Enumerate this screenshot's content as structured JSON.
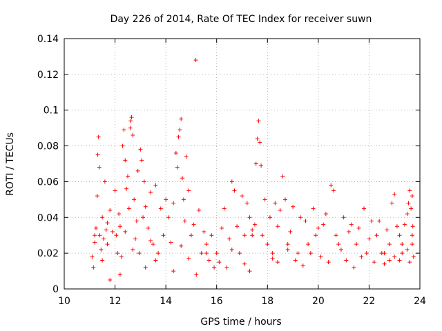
{
  "chart_data": {
    "type": "scatter",
    "title": "Day 226 of 2014, Rate Of TEC Index for receiver suwn",
    "xlabel": "GPS time / hours",
    "ylabel": "ROTI / TECUs",
    "xlim": [
      10,
      24
    ],
    "ylim": [
      0,
      0.14
    ],
    "xticks": [
      10,
      12,
      14,
      16,
      18,
      20,
      22,
      24
    ],
    "xtick_labels": [
      "10",
      "12",
      "14",
      "16",
      "18",
      "20",
      "22",
      "24"
    ],
    "yticks": [
      0,
      0.02,
      0.04,
      0.06,
      0.08,
      0.1,
      0.12,
      0.14
    ],
    "ytick_labels": [
      "0",
      "0.02",
      "0.04",
      "0.06",
      "0.08",
      "0.1",
      "0.12",
      "0.14"
    ],
    "grid": true,
    "marker": "+",
    "color": "#ff0000",
    "series": [
      {
        "name": "ROTI",
        "points": [
          [
            11.1,
            0.018
          ],
          [
            11.15,
            0.012
          ],
          [
            11.2,
            0.026
          ],
          [
            11.25,
            0.034
          ],
          [
            11.3,
            0.052
          ],
          [
            11.32,
            0.075
          ],
          [
            11.35,
            0.085
          ],
          [
            11.38,
            0.068
          ],
          [
            11.4,
            0.03
          ],
          [
            11.45,
            0.022
          ],
          [
            11.5,
            0.04
          ],
          [
            11.55,
            0.028
          ],
          [
            11.6,
            0.06
          ],
          [
            11.65,
            0.033
          ],
          [
            11.7,
            0.025
          ],
          [
            11.8,
            0.044
          ],
          [
            11.9,
            0.032
          ],
          [
            12.0,
            0.055
          ],
          [
            12.05,
            0.03
          ],
          [
            12.1,
            0.02
          ],
          [
            12.15,
            0.042
          ],
          [
            12.2,
            0.035
          ],
          [
            12.25,
            0.018
          ],
          [
            12.3,
            0.08
          ],
          [
            12.35,
            0.089
          ],
          [
            12.4,
            0.072
          ],
          [
            12.45,
            0.056
          ],
          [
            12.5,
            0.063
          ],
          [
            12.55,
            0.045
          ],
          [
            12.6,
            0.09
          ],
          [
            12.62,
            0.094
          ],
          [
            12.65,
            0.096
          ],
          [
            12.7,
            0.086
          ],
          [
            12.75,
            0.05
          ],
          [
            12.8,
            0.028
          ],
          [
            12.85,
            0.038
          ],
          [
            12.9,
            0.066
          ],
          [
            12.95,
            0.02
          ],
          [
            13.0,
            0.078
          ],
          [
            13.05,
            0.072
          ],
          [
            13.1,
            0.04
          ],
          [
            13.15,
            0.06
          ],
          [
            13.2,
            0.046
          ],
          [
            13.3,
            0.034
          ],
          [
            13.4,
            0.054
          ],
          [
            13.5,
            0.025
          ],
          [
            13.6,
            0.058
          ],
          [
            13.7,
            0.02
          ],
          [
            13.8,
            0.045
          ],
          [
            13.9,
            0.03
          ],
          [
            14.0,
            0.05
          ],
          [
            14.1,
            0.04
          ],
          [
            14.2,
            0.026
          ],
          [
            14.3,
            0.048
          ],
          [
            14.4,
            0.076
          ],
          [
            14.45,
            0.068
          ],
          [
            14.5,
            0.085
          ],
          [
            14.55,
            0.089
          ],
          [
            14.6,
            0.095
          ],
          [
            14.65,
            0.062
          ],
          [
            14.7,
            0.05
          ],
          [
            14.75,
            0.038
          ],
          [
            14.8,
            0.074
          ],
          [
            14.9,
            0.055
          ],
          [
            15.0,
            0.03
          ],
          [
            15.1,
            0.036
          ],
          [
            15.18,
            0.128
          ],
          [
            15.3,
            0.044
          ],
          [
            15.4,
            0.02
          ],
          [
            15.5,
            0.032
          ],
          [
            15.6,
            0.025
          ],
          [
            15.7,
            0.016
          ],
          [
            15.8,
            0.03
          ],
          [
            15.9,
            0.012
          ],
          [
            16.0,
            0.02
          ],
          [
            16.2,
            0.034
          ],
          [
            16.3,
            0.045
          ],
          [
            16.5,
            0.028
          ],
          [
            16.6,
            0.06
          ],
          [
            16.7,
            0.055
          ],
          [
            16.8,
            0.035
          ],
          [
            16.9,
            0.02
          ],
          [
            17.0,
            0.052
          ],
          [
            17.1,
            0.03
          ],
          [
            17.2,
            0.048
          ],
          [
            17.3,
            0.04
          ],
          [
            17.4,
            0.033
          ],
          [
            17.5,
            0.036
          ],
          [
            17.55,
            0.07
          ],
          [
            17.6,
            0.084
          ],
          [
            17.65,
            0.094
          ],
          [
            17.7,
            0.082
          ],
          [
            17.75,
            0.069
          ],
          [
            17.8,
            0.03
          ],
          [
            17.9,
            0.05
          ],
          [
            18.0,
            0.025
          ],
          [
            18.1,
            0.04
          ],
          [
            18.2,
            0.02
          ],
          [
            18.3,
            0.048
          ],
          [
            18.4,
            0.035
          ],
          [
            18.5,
            0.044
          ],
          [
            18.6,
            0.063
          ],
          [
            18.7,
            0.05
          ],
          [
            18.8,
            0.025
          ],
          [
            18.9,
            0.032
          ],
          [
            19.0,
            0.046
          ],
          [
            19.2,
            0.02
          ],
          [
            19.3,
            0.04
          ],
          [
            19.5,
            0.038
          ],
          [
            19.6,
            0.025
          ],
          [
            19.8,
            0.045
          ],
          [
            19.9,
            0.03
          ],
          [
            20.0,
            0.034
          ],
          [
            20.2,
            0.036
          ],
          [
            20.3,
            0.042
          ],
          [
            20.5,
            0.058
          ],
          [
            20.6,
            0.055
          ],
          [
            20.7,
            0.03
          ],
          [
            20.8,
            0.025
          ],
          [
            21.0,
            0.04
          ],
          [
            21.2,
            0.032
          ],
          [
            21.3,
            0.036
          ],
          [
            21.5,
            0.025
          ],
          [
            21.6,
            0.034
          ],
          [
            21.8,
            0.045
          ],
          [
            21.9,
            0.02
          ],
          [
            22.0,
            0.028
          ],
          [
            22.1,
            0.038
          ],
          [
            22.3,
            0.03
          ],
          [
            22.4,
            0.038
          ],
          [
            22.5,
            0.02
          ],
          [
            22.7,
            0.033
          ],
          [
            22.8,
            0.025
          ],
          [
            22.9,
            0.048
          ],
          [
            23.0,
            0.053
          ],
          [
            23.1,
            0.035
          ],
          [
            23.2,
            0.03
          ],
          [
            23.3,
            0.025
          ],
          [
            23.4,
            0.036
          ],
          [
            23.5,
            0.042
          ],
          [
            23.55,
            0.048
          ],
          [
            23.6,
            0.055
          ],
          [
            23.65,
            0.045
          ],
          [
            23.7,
            0.052
          ],
          [
            23.72,
            0.035
          ],
          [
            23.75,
            0.018
          ],
          [
            23.7,
            0.025
          ],
          [
            23.2,
            0.016
          ],
          [
            22.6,
            0.014
          ],
          [
            21.4,
            0.012
          ],
          [
            20.4,
            0.015
          ],
          [
            19.4,
            0.013
          ],
          [
            18.4,
            0.015
          ],
          [
            17.3,
            0.01
          ],
          [
            16.4,
            0.012
          ],
          [
            15.2,
            0.008
          ],
          [
            14.3,
            0.01
          ],
          [
            13.2,
            0.012
          ],
          [
            12.2,
            0.008
          ],
          [
            11.8,
            0.005
          ],
          [
            11.5,
            0.016
          ],
          [
            12.7,
            0.022
          ],
          [
            13.6,
            0.016
          ],
          [
            14.9,
            0.017
          ],
          [
            16.1,
            0.015
          ],
          [
            17.1,
            0.014
          ],
          [
            18.2,
            0.017
          ],
          [
            19.1,
            0.016
          ],
          [
            20.1,
            0.018
          ],
          [
            21.1,
            0.016
          ],
          [
            22.2,
            0.015
          ],
          [
            22.6,
            0.02
          ],
          [
            23.0,
            0.018
          ],
          [
            23.3,
            0.02
          ],
          [
            23.6,
            0.015
          ],
          [
            11.2,
            0.03
          ],
          [
            11.7,
            0.037
          ],
          [
            12.4,
            0.032
          ],
          [
            13.4,
            0.027
          ],
          [
            14.6,
            0.024
          ],
          [
            15.6,
            0.02
          ],
          [
            16.6,
            0.022
          ],
          [
            17.4,
            0.03
          ],
          [
            18.8,
            0.022
          ],
          [
            19.7,
            0.02
          ],
          [
            20.9,
            0.022
          ],
          [
            21.7,
            0.018
          ],
          [
            22.8,
            0.016
          ],
          [
            23.5,
            0.022
          ],
          [
            23.7,
            0.03
          ]
        ]
      }
    ]
  }
}
